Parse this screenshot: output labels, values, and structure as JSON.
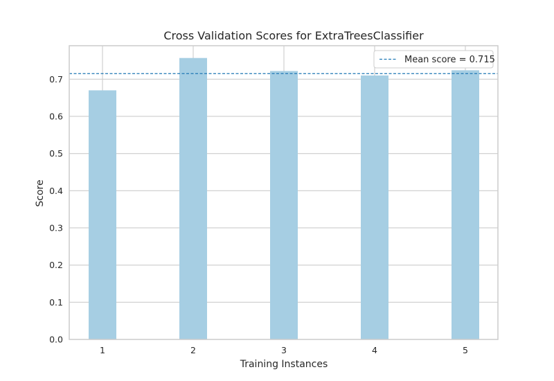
{
  "chart_data": {
    "type": "bar",
    "title": "Cross Validation Scores for ExtraTreesClassifier",
    "xlabel": "Training Instances",
    "ylabel": "Score",
    "categories": [
      "1",
      "2",
      "3",
      "4",
      "5"
    ],
    "values": [
      0.67,
      0.757,
      0.722,
      0.71,
      0.724
    ],
    "ylim": [
      0,
      0.79
    ],
    "yticks": [
      "0.0",
      "0.1",
      "0.2",
      "0.3",
      "0.4",
      "0.5",
      "0.6",
      "0.7"
    ],
    "mean_score": 0.715,
    "legend": {
      "label": "Mean score = 0.715",
      "placement": "top-right"
    },
    "grid": true,
    "colors": {
      "bar": "#a6cee3",
      "mean_line": "#1f78b4",
      "grid": "#cccccc"
    }
  }
}
